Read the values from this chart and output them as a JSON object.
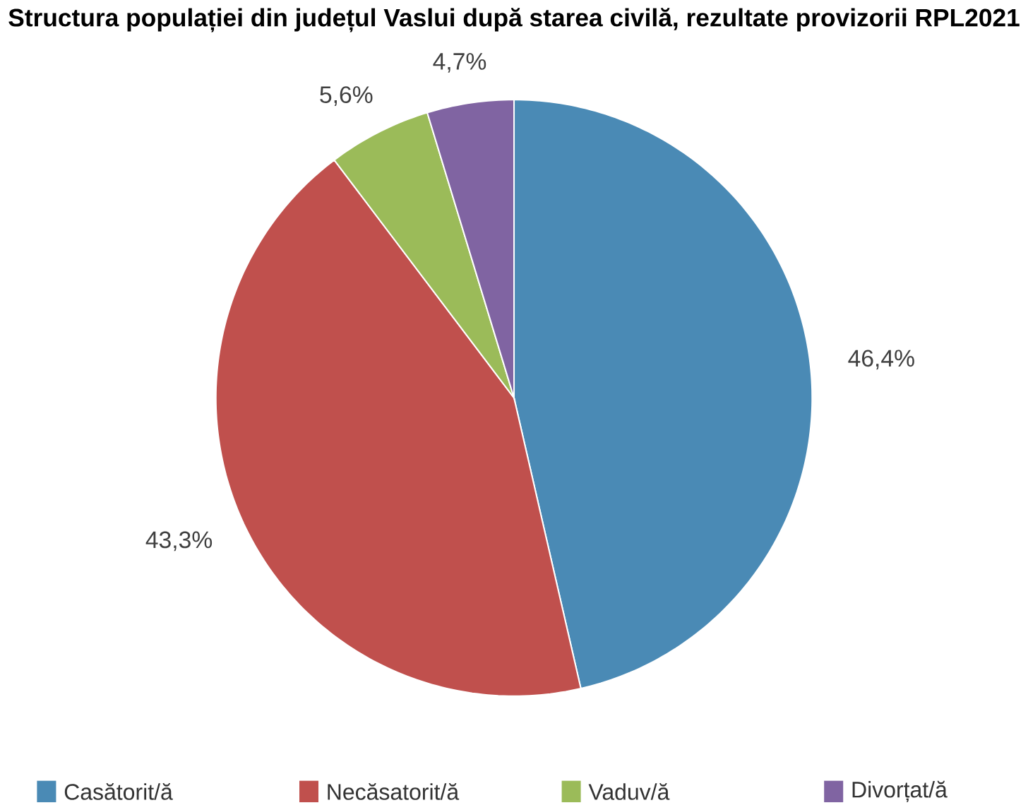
{
  "chart_data": {
    "type": "pie",
    "title": "Structura populației din județul Vaslui după starea civilă, rezultate provizorii RPL2021",
    "categories": [
      "Casătorit/ă",
      "Necăsatorit/ă",
      "Vaduv/ă",
      "Divorțat/ă"
    ],
    "values": [
      46.4,
      43.3,
      5.6,
      4.7
    ],
    "colors": [
      "#4a8ab5",
      "#c0504d",
      "#9bbb59",
      "#8064a2"
    ],
    "value_labels": [
      "46,4%",
      "43,3%",
      "5,6%",
      "4,7%"
    ],
    "data_labels": true,
    "legend": "bottom"
  }
}
